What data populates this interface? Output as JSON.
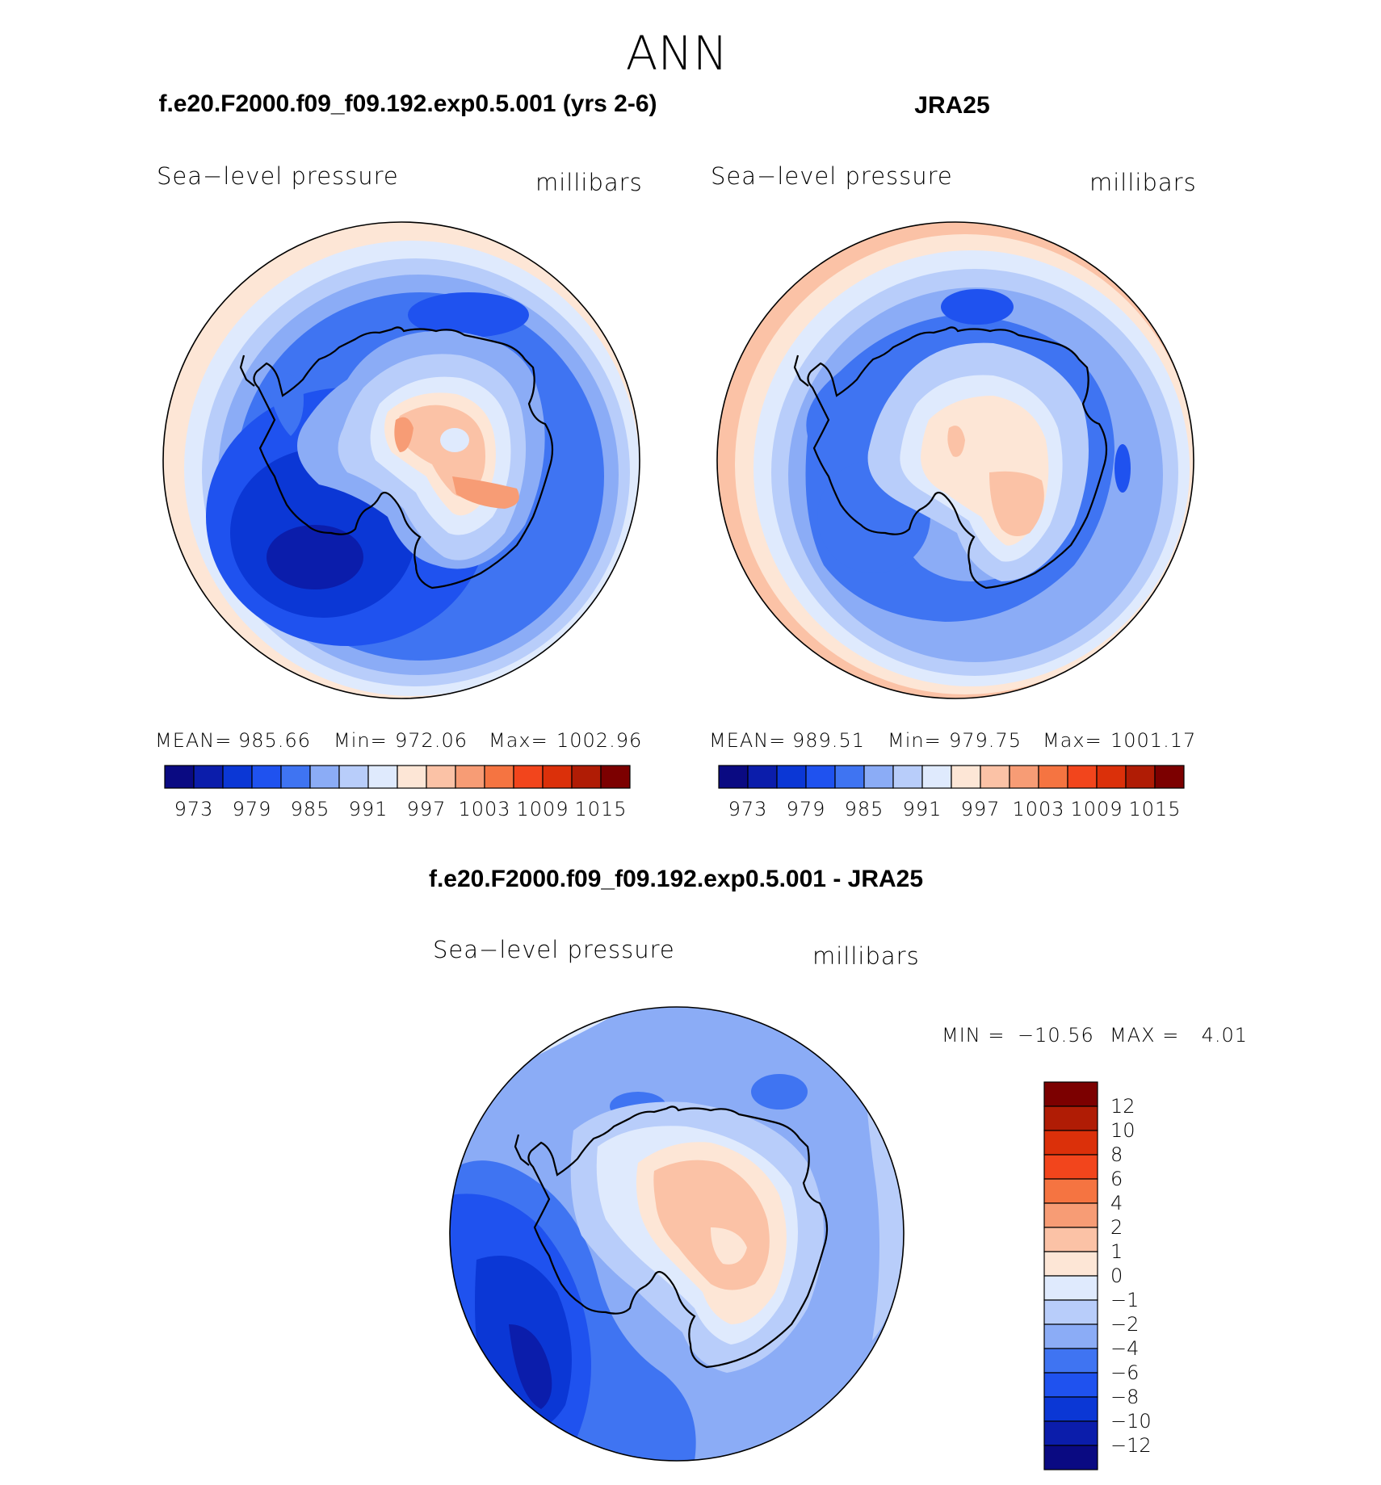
{
  "page_title": "ANN",
  "chart_data": [
    {
      "type": "contour-map",
      "title": "f.e20.F2000.f09_f09.192.exp0.5.001 (yrs 2-6)",
      "variable_label": "Sea−level pressure",
      "units_label": "millibars",
      "stats": {
        "mean_label": "MEAN=",
        "mean": "985.66",
        "min_label": "Min=",
        "min": "972.06",
        "max_label": "Max=",
        "max": "1002.96"
      },
      "levels": [
        970,
        973,
        976,
        979,
        982,
        985,
        988,
        991,
        994,
        997,
        1000,
        1003,
        1006,
        1009,
        1012,
        1015
      ],
      "colorbar_tick_labels": [
        "973",
        "979",
        "985",
        "991",
        "997",
        "1003",
        "1009",
        "1015"
      ],
      "colors": [
        "#0a0a82",
        "#0b1dab",
        "#0b37d5",
        "#1f52ef",
        "#3f74f2",
        "#8bacf6",
        "#b8cdfa",
        "#dfeafd",
        "#fde6d6",
        "#fbc2a6",
        "#f79c75",
        "#f57441",
        "#f2451c",
        "#db300a",
        "#b01c05",
        "#7c0000"
      ],
      "map_fields": {
        "lowest_level_index": 0,
        "highest_level_index": 9
      }
    },
    {
      "type": "contour-map",
      "title": "JRA25",
      "variable_label": "Sea−level pressure",
      "units_label": "millibars",
      "stats": {
        "mean_label": "MEAN=",
        "mean": "989.51",
        "min_label": "Min=",
        "min": "979.75",
        "max_label": "Max=",
        "max": "1001.17"
      },
      "levels": [
        970,
        973,
        976,
        979,
        982,
        985,
        988,
        991,
        994,
        997,
        1000,
        1003,
        1006,
        1009,
        1012,
        1015
      ],
      "colorbar_tick_labels": [
        "973",
        "979",
        "985",
        "991",
        "997",
        "1003",
        "1009",
        "1015"
      ],
      "colors": [
        "#0a0a82",
        "#0b1dab",
        "#0b37d5",
        "#1f52ef",
        "#3f74f2",
        "#8bacf6",
        "#b8cdfa",
        "#dfeafd",
        "#fde6d6",
        "#fbc2a6",
        "#f79c75",
        "#f57441",
        "#f2451c",
        "#db300a",
        "#b01c05",
        "#7c0000"
      ]
    },
    {
      "type": "contour-map",
      "title": "f.e20.F2000.f09_f09.192.exp0.5.001 - JRA25",
      "variable_label": "Sea−level pressure",
      "units_label": "millibars",
      "stats": {
        "min_label": "MIN =",
        "min": "−10.56",
        "max_label": "MAX =",
        "max": "4.01"
      },
      "levels": [
        -12,
        -10,
        -8,
        -6,
        -4,
        -2,
        -1,
        0,
        1,
        2,
        4,
        6,
        8,
        10,
        12
      ],
      "colorbar_tick_labels": [
        "12",
        "10",
        "8",
        "6",
        "4",
        "2",
        "1",
        "0",
        "−1",
        "−2",
        "−4",
        "−6",
        "−8",
        "−10",
        "−12"
      ],
      "colors": [
        "#0a0a82",
        "#0b1dab",
        "#0b37d5",
        "#1f52ef",
        "#3f74f2",
        "#8bacf6",
        "#b8cdfa",
        "#dfeafd",
        "#fde6d6",
        "#fbc2a6",
        "#f79c75",
        "#f57441",
        "#f2451c",
        "#db300a",
        "#b01c05",
        "#7c0000"
      ]
    }
  ]
}
